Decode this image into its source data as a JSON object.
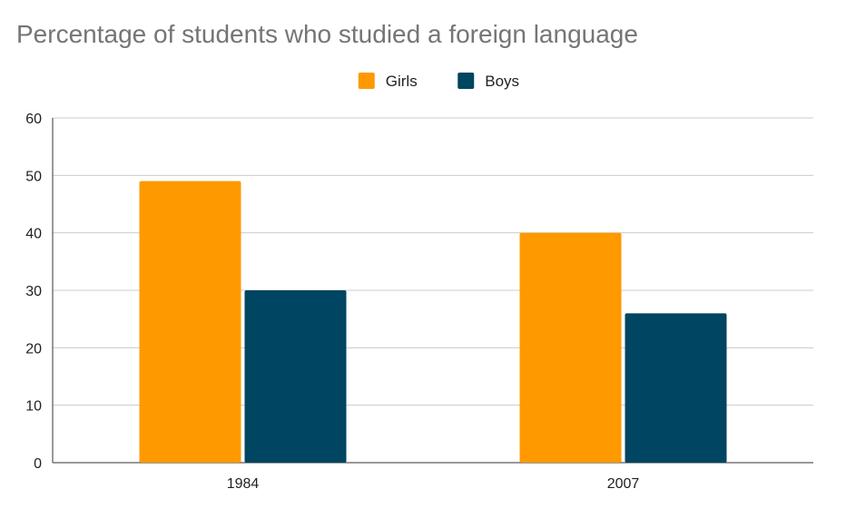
{
  "chart_data": {
    "type": "bar",
    "title": "Percentage of students who studied a foreign language",
    "categories": [
      "1984",
      "2007"
    ],
    "series": [
      {
        "name": "Girls",
        "values": [
          49,
          40
        ],
        "color": "#ff9900"
      },
      {
        "name": "Boys",
        "values": [
          30,
          26
        ],
        "color": "#004561"
      }
    ],
    "y_ticks": [
      "0",
      "10",
      "20",
      "30",
      "40",
      "50",
      "60"
    ],
    "ylim": [
      0,
      60
    ],
    "xlabel": "",
    "ylabel": "",
    "grid": true,
    "legend_position": "top-center"
  }
}
